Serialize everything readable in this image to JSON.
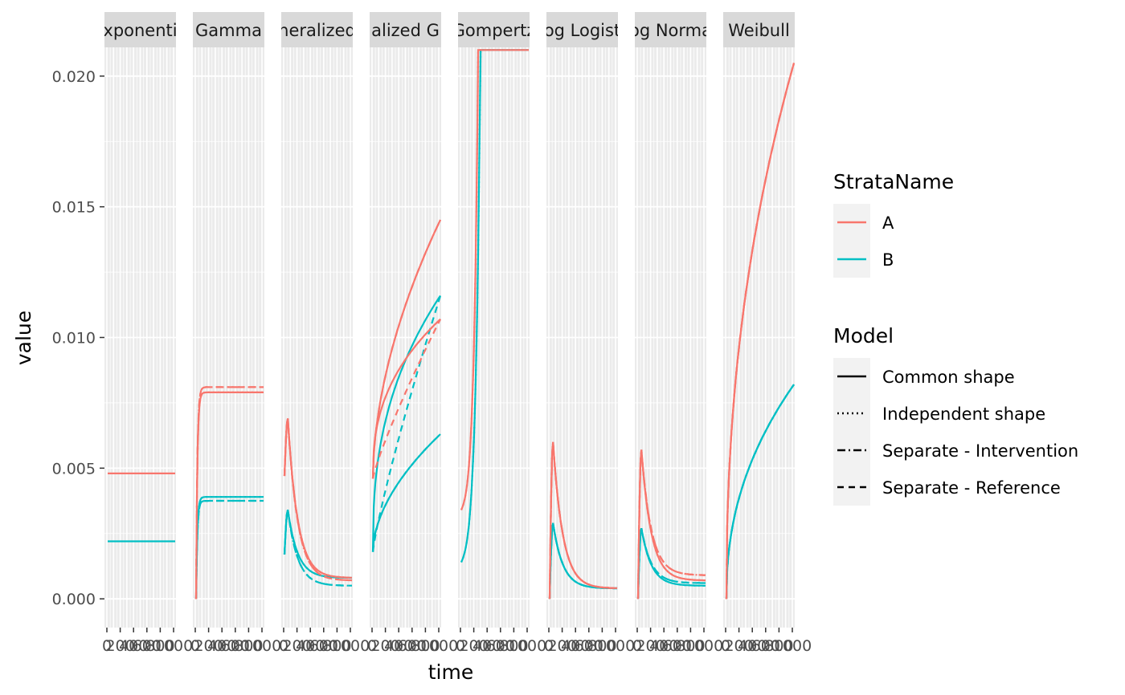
{
  "chart_data": {
    "type": "line",
    "xlabel": "time",
    "ylabel": "value",
    "ylim": [
      -0.0011,
      0.0211
    ],
    "xlim": [
      0,
      1000
    ],
    "yticks": [
      0.0,
      0.005,
      0.01,
      0.015,
      0.02
    ],
    "ytick_labels": [
      "0.000",
      "0.005",
      "0.010",
      "0.015",
      "0.020"
    ],
    "xtick_labels": [
      "0",
      "200",
      "400",
      "600",
      "800",
      "1000"
    ],
    "panels": [
      {
        "label": "Exponential",
        "clip_label": "xponenti",
        "formula": "const",
        "params": {
          "A": [
            0.0048
          ],
          "B": [
            0.0022
          ]
        }
      },
      {
        "label": "Gamma",
        "clip_label": "Gamma",
        "formula": "gamma",
        "params": {
          "A": [
            0.0079,
            0.0081
          ],
          "B": [
            0.0039,
            0.00375
          ]
        }
      },
      {
        "label": "Generalized Gamma",
        "clip_label": "neralized",
        "formula": "peak",
        "params": {
          "A": [
            0.0047,
            0.0069,
            0.0008,
            0.0007
          ],
          "B": [
            0.0017,
            0.0034,
            0.0008,
            0.0005
          ]
        }
      },
      {
        "label": "Generalized Gamma (F)",
        "clip_label": "alized G",
        "formula": "sqrt",
        "params": {
          "A": [
            0.0046,
            0.0145,
            0.0107
          ],
          "B": [
            0.0018,
            0.0063,
            0.0116
          ]
        }
      },
      {
        "label": "Gompertz",
        "clip_label": "Gompertz",
        "formula": "exp",
        "params": {
          "A": [
            0.0034,
            0.021,
            250
          ],
          "B": [
            0.0014,
            0.021,
            285
          ]
        }
      },
      {
        "label": "Log Logistic",
        "clip_label": "og Logist",
        "formula": "peak",
        "params": {
          "A": [
            0.0,
            0.006,
            0.0004,
            0.0004
          ],
          "B": [
            0.0,
            0.0029,
            0.0004,
            0.0004
          ]
        }
      },
      {
        "label": "Log Normal",
        "clip_label": "og Norma",
        "formula": "peak",
        "params": {
          "A": [
            0.0,
            0.0057,
            0.0007,
            0.0009
          ],
          "B": [
            0.0,
            0.0027,
            0.0005,
            0.0006
          ]
        }
      },
      {
        "label": "Weibull",
        "clip_label": "Weibull",
        "formula": "power",
        "params": {
          "A": [
            0.0,
            0.0205
          ],
          "B": [
            0.0,
            0.0082
          ]
        }
      }
    ],
    "legend": {
      "placement": "right",
      "strata_title": "StrataName",
      "strata": [
        {
          "name": "A",
          "color": "#F8766D"
        },
        {
          "name": "B",
          "color": "#00BFC4"
        }
      ],
      "model_title": "Model",
      "models": [
        {
          "name": "Common shape",
          "dash": "solid"
        },
        {
          "name": "Independent shape",
          "dash": "dotted"
        },
        {
          "name": "Separate - Intervention",
          "dash": "dashdot"
        },
        {
          "name": "Separate - Reference",
          "dash": "dashed"
        }
      ]
    }
  }
}
